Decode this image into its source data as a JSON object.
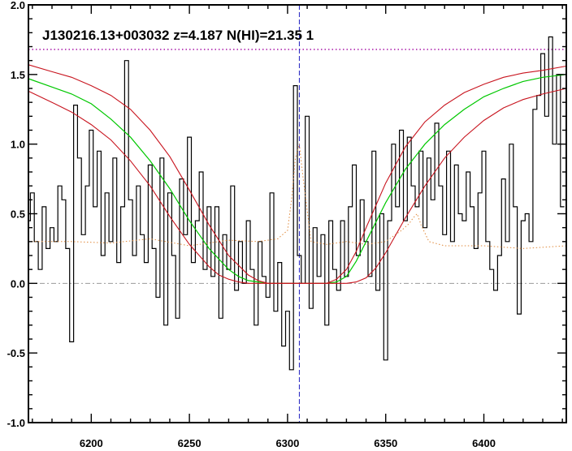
{
  "chart_data": {
    "type": "line",
    "title": "J130216.13+003032 z=4.187 N(HI)=21.35 1",
    "xlabel": "",
    "ylabel": "",
    "xlim": [
      6168,
      6442
    ],
    "ylim": [
      -1.0,
      2.0
    ],
    "x_ticks": [
      6200,
      6250,
      6300,
      6350,
      6400
    ],
    "y_ticks": [
      -1.0,
      -0.5,
      0.0,
      0.5,
      1.0,
      1.5,
      2.0
    ],
    "y_tick_labels": [
      "-1.0",
      "-0.5",
      "0.0",
      "0.5",
      "1.0",
      "1.5",
      "2.0"
    ],
    "continuum_level": 1.68,
    "zero_level": 0.0,
    "center_wavelength": 6306,
    "colors": {
      "flux": "#000000",
      "error": "#e08a3c",
      "model": "#00c800",
      "model_bounds": "#c8141e",
      "continuum": "#a000a0",
      "center_line": "#2020c0",
      "zero_line": "#999999"
    },
    "series": [
      {
        "x": [
          6168,
          6170,
          6172,
          6174,
          6176,
          6178,
          6180,
          6182,
          6184,
          6186,
          6188,
          6190,
          6192,
          6194,
          6196,
          6198,
          6200,
          6202,
          6204,
          6206,
          6208,
          6210,
          6212,
          6214,
          6216,
          6218,
          6220,
          6222,
          6224,
          6226,
          6228,
          6230,
          6232,
          6234,
          6236,
          6238,
          6240,
          6242,
          6244,
          6246,
          6248,
          6250,
          6252,
          6254,
          6256,
          6258,
          6260,
          6262,
          6264,
          6266,
          6268,
          6270,
          6272,
          6274,
          6276,
          6278,
          6280,
          6282,
          6284,
          6286,
          6288,
          6290,
          6292,
          6294,
          6296,
          6298,
          6300,
          6302,
          6304,
          6306,
          6308,
          6310,
          6312,
          6314,
          6316,
          6318,
          6320,
          6322,
          6324,
          6326,
          6328,
          6330,
          6332,
          6334,
          6336,
          6338,
          6340,
          6342,
          6344,
          6346,
          6348,
          6350,
          6352,
          6354,
          6356,
          6358,
          6360,
          6362,
          6364,
          6366,
          6368,
          6370,
          6372,
          6374,
          6376,
          6378,
          6380,
          6382,
          6384,
          6386,
          6388,
          6390,
          6392,
          6394,
          6396,
          6398,
          6400,
          6402,
          6404,
          6406,
          6408,
          6410,
          6412,
          6414,
          6416,
          6418,
          6420,
          6422,
          6424,
          6426,
          6428,
          6430,
          6432,
          6434,
          6436,
          6438,
          6440
        ],
        "y": [
          0.45,
          0.65,
          0.3,
          0.1,
          0.55,
          0.25,
          0.4,
          0.3,
          0.7,
          0.6,
          0.25,
          -0.42,
          1.28,
          0.9,
          0.35,
          0.7,
          1.1,
          0.55,
          0.95,
          0.2,
          0.65,
          0.3,
          0.9,
          0.15,
          0.55,
          1.6,
          0.6,
          0.2,
          0.7,
          0.35,
          0.15,
          0.85,
          0.25,
          -0.1,
          0.9,
          -0.3,
          0.65,
          0.2,
          -0.25,
          0.75,
          0.35,
          1.05,
          0.15,
          0.45,
          0.8,
          0.1,
          0.55,
          0.05,
          0.55,
          -0.25,
          0.35,
          0.1,
          0.7,
          -0.05,
          0.3,
          0.0,
          0.45,
          0.1,
          -0.3,
          0.3,
          0.05,
          -0.1,
          0.65,
          -0.2,
          0.15,
          -0.45,
          -0.2,
          -0.62,
          1.42,
          0.2,
          0.0,
          1.2,
          -0.18,
          0.4,
          0.05,
          0.35,
          -0.3,
          0.45,
          0.1,
          -0.05,
          0.45,
          0.05,
          0.55,
          0.85,
          0.2,
          0.6,
          0.3,
          0.05,
          0.95,
          -0.05,
          0.5,
          -0.55,
          0.45,
          1.0,
          0.55,
          1.1,
          0.45,
          1.05,
          0.7,
          0.55,
          0.95,
          0.4,
          0.9,
          0.6,
          1.15,
          0.7,
          0.35,
          0.95,
          0.3,
          0.85,
          0.5,
          0.45,
          0.8,
          0.55,
          0.25,
          0.65,
          0.95,
          0.3,
          0.1,
          -0.05,
          0.2,
          0.75,
          0.3,
          1.0,
          0.55,
          -0.22,
          0.45,
          0.5,
          0.3,
          1.25,
          1.35,
          1.65,
          1.2,
          1.77,
          1.0,
          1.5,
          0.55
        ]
      },
      {
        "x": [
          6168,
          6190,
          6210,
          6230,
          6250,
          6270,
          6285,
          6295,
          6300,
          6302,
          6304,
          6306,
          6308,
          6312,
          6320,
          6330,
          6340,
          6350,
          6358,
          6362,
          6364,
          6366,
          6368,
          6372,
          6380,
          6400,
          6420,
          6442
        ],
        "y": [
          0.3,
          0.3,
          0.29,
          0.32,
          0.27,
          0.31,
          0.3,
          0.32,
          0.38,
          0.6,
          0.9,
          1.0,
          0.75,
          0.3,
          0.28,
          0.3,
          0.28,
          0.3,
          0.38,
          0.43,
          0.47,
          0.5,
          0.42,
          0.3,
          0.27,
          0.27,
          0.25,
          0.27
        ]
      },
      {
        "x": [
          6168,
          6180,
          6190,
          6200,
          6210,
          6220,
          6230,
          6240,
          6250,
          6260,
          6270,
          6275,
          6280,
          6285,
          6290,
          6295,
          6300,
          6310,
          6320,
          6325,
          6330,
          6335,
          6340,
          6350,
          6360,
          6370,
          6380,
          6390,
          6400,
          6410,
          6420,
          6430,
          6442
        ],
        "y": [
          1.47,
          1.41,
          1.36,
          1.29,
          1.18,
          1.05,
          0.88,
          0.68,
          0.45,
          0.25,
          0.1,
          0.05,
          0.02,
          0.01,
          0.0,
          0.0,
          0.0,
          0.0,
          0.0,
          0.01,
          0.05,
          0.16,
          0.3,
          0.58,
          0.82,
          1.0,
          1.14,
          1.25,
          1.34,
          1.4,
          1.45,
          1.48,
          1.5
        ]
      },
      {
        "x": [
          6168,
          6180,
          6190,
          6200,
          6210,
          6220,
          6230,
          6240,
          6250,
          6260,
          6270,
          6280,
          6285,
          6290,
          6295,
          6300,
          6320,
          6325,
          6330,
          6335,
          6340,
          6350,
          6360,
          6370,
          6380,
          6390,
          6400,
          6410,
          6420,
          6430,
          6442
        ],
        "y": [
          1.57,
          1.52,
          1.48,
          1.42,
          1.35,
          1.25,
          1.1,
          0.91,
          0.67,
          0.42,
          0.2,
          0.06,
          0.02,
          0.0,
          0.0,
          0.0,
          0.0,
          0.03,
          0.1,
          0.23,
          0.4,
          0.72,
          0.98,
          1.16,
          1.28,
          1.37,
          1.43,
          1.48,
          1.51,
          1.53,
          1.56
        ]
      },
      {
        "x": [
          6168,
          6180,
          6190,
          6200,
          6210,
          6220,
          6230,
          6240,
          6250,
          6260,
          6265,
          6270,
          6275,
          6280,
          6285,
          6290,
          6300,
          6330,
          6335,
          6340,
          6345,
          6350,
          6360,
          6370,
          6380,
          6390,
          6400,
          6410,
          6420,
          6430,
          6442
        ],
        "y": [
          1.38,
          1.3,
          1.23,
          1.14,
          1.03,
          0.88,
          0.7,
          0.48,
          0.28,
          0.12,
          0.06,
          0.03,
          0.01,
          0.0,
          0.0,
          0.0,
          0.0,
          0.0,
          0.01,
          0.04,
          0.11,
          0.22,
          0.47,
          0.7,
          0.9,
          1.05,
          1.17,
          1.26,
          1.32,
          1.36,
          1.4
        ]
      }
    ]
  }
}
